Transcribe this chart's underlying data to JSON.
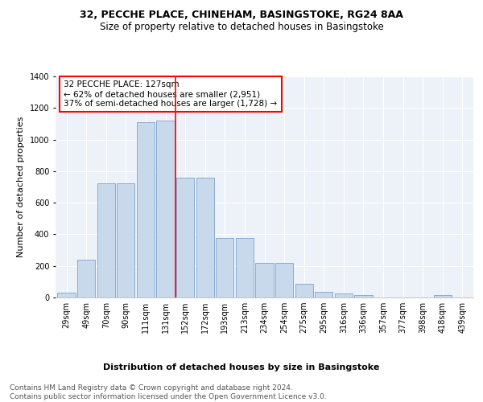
{
  "title": "32, PECCHE PLACE, CHINEHAM, BASINGSTOKE, RG24 8AA",
  "subtitle": "Size of property relative to detached houses in Basingstoke",
  "xlabel": "Distribution of detached houses by size in Basingstoke",
  "ylabel": "Number of detached properties",
  "categories": [
    "29sqm",
    "49sqm",
    "70sqm",
    "90sqm",
    "111sqm",
    "131sqm",
    "152sqm",
    "172sqm",
    "193sqm",
    "213sqm",
    "234sqm",
    "254sqm",
    "275sqm",
    "295sqm",
    "316sqm",
    "336sqm",
    "357sqm",
    "377sqm",
    "398sqm",
    "418sqm",
    "439sqm"
  ],
  "values": [
    30,
    240,
    725,
    725,
    1110,
    1120,
    760,
    760,
    375,
    375,
    220,
    220,
    85,
    35,
    25,
    15,
    0,
    0,
    0,
    15,
    0
  ],
  "bar_color": "#c9d9ec",
  "bar_edge_color": "#7ba4cc",
  "vline_color": "red",
  "vline_position": 5.5,
  "annotation_text": "32 PECCHE PLACE: 127sqm\n← 62% of detached houses are smaller (2,951)\n37% of semi-detached houses are larger (1,728) →",
  "annotation_box_color": "white",
  "annotation_box_edge_color": "red",
  "ylim": [
    0,
    1400
  ],
  "yticks": [
    0,
    200,
    400,
    600,
    800,
    1000,
    1200,
    1400
  ],
  "footer": "Contains HM Land Registry data © Crown copyright and database right 2024.\nContains public sector information licensed under the Open Government Licence v3.0.",
  "bg_color": "#edf2f9",
  "plot_bg_color": "#edf2f9",
  "title_fontsize": 9,
  "subtitle_fontsize": 8.5,
  "axis_label_fontsize": 8,
  "tick_fontsize": 7,
  "annotation_fontsize": 7.5,
  "footer_fontsize": 6.5
}
